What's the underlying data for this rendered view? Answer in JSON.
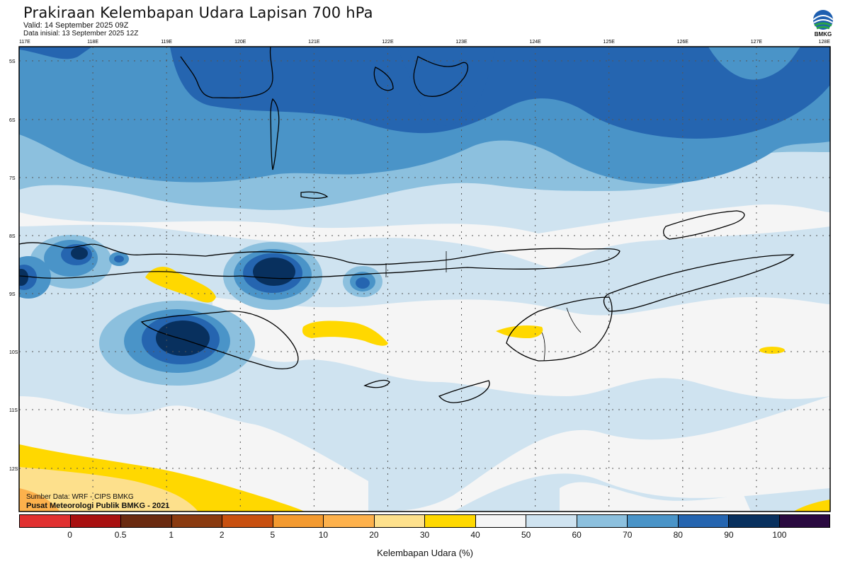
{
  "header": {
    "title": "Prakiraan Kelembapan Udara Lapisan 700 hPa",
    "valid": "Valid: 14 September 2025 09Z",
    "initial": "Data inisial: 13 September 2025 12Z",
    "logo_text": "BMKG"
  },
  "map": {
    "lon_labels": [
      "117E",
      "118E",
      "119E",
      "120E",
      "121E",
      "122E",
      "123E",
      "124E",
      "125E",
      "126E",
      "127E",
      "128E"
    ],
    "lat_labels": [
      "5S",
      "6S",
      "7S",
      "8S",
      "9S",
      "10S",
      "11S",
      "12S"
    ]
  },
  "credits": {
    "source": "Sumber Data: WRF - CIPS BMKG",
    "org": "Pusat Meteorologi Publik BMKG - 2021"
  },
  "colorbar": {
    "colors": [
      "#e03030",
      "#a81010",
      "#6a2a10",
      "#8a3a10",
      "#c85010",
      "#f39a30",
      "#fdb14c",
      "#fde08c",
      "#ffd800",
      "#f5f5f5",
      "#cfe3f0",
      "#8cc0de",
      "#4a94c8",
      "#2565b0",
      "#08305e",
      "#2a0a40"
    ],
    "ticks": [
      "0",
      "0.5",
      "1",
      "2",
      "5",
      "10",
      "20",
      "30",
      "40",
      "50",
      "60",
      "70",
      "80",
      "90",
      "100"
    ],
    "unit": "Kelembapan Udara (%)"
  }
}
